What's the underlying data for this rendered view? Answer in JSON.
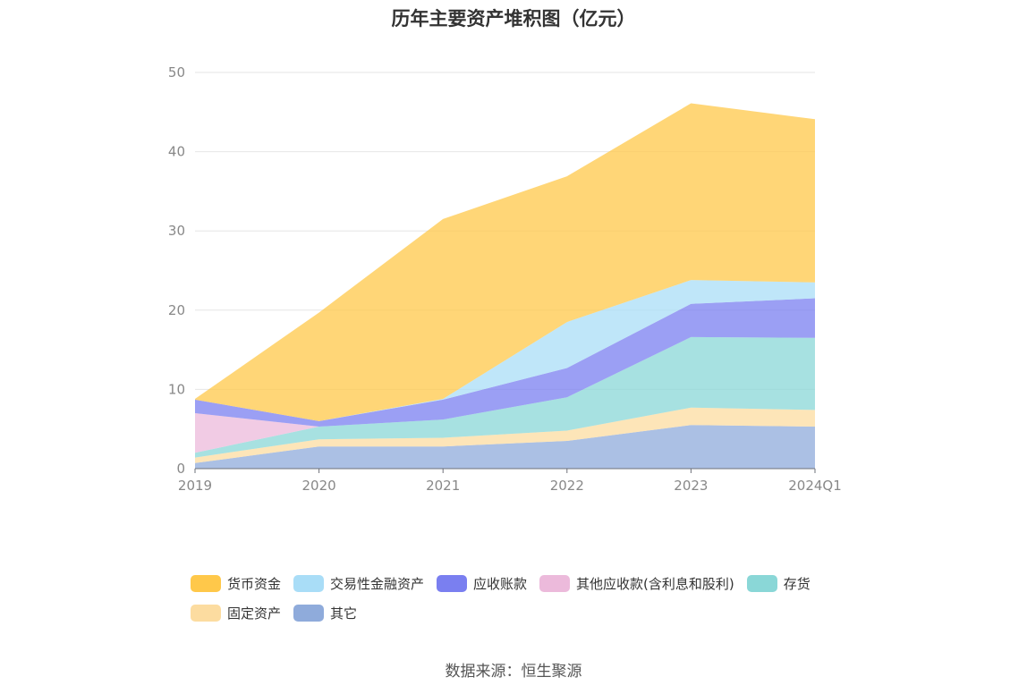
{
  "title": "历年主要资产堆积图（亿元）",
  "source": "数据来源：恒生聚源",
  "chart_data": {
    "type": "area",
    "stacked": true,
    "categories": [
      "2019",
      "2020",
      "2021",
      "2022",
      "2023",
      "2024Q1"
    ],
    "ylim": [
      0,
      50
    ],
    "yticks": [
      "0",
      "10",
      "20",
      "30",
      "40",
      "50"
    ],
    "grid": true,
    "legend_position": "bottom",
    "series": [
      {
        "name": "其它",
        "color": "#8fabdb",
        "values": [
          0.7,
          2.8,
          2.8,
          3.5,
          5.5,
          5.3
        ]
      },
      {
        "name": "固定资产",
        "color": "#fcdca0",
        "values": [
          0.7,
          0.9,
          1.1,
          1.3,
          2.2,
          2.1
        ]
      },
      {
        "name": "存货",
        "color": "#8ad7d7",
        "values": [
          0.6,
          1.6,
          2.3,
          4.2,
          8.9,
          9.1
        ]
      },
      {
        "name": "其他应收款(含利息和股利)",
        "color": "#ecbadb",
        "values": [
          5.0,
          0.0,
          0.0,
          0.0,
          0.0,
          0.0
        ]
      },
      {
        "name": "应收账款",
        "color": "#7a7ff0",
        "values": [
          1.7,
          0.7,
          2.5,
          3.7,
          4.2,
          5.0
        ]
      },
      {
        "name": "交易性金融资产",
        "color": "#a9ddf7",
        "values": [
          0.0,
          0.0,
          0.1,
          5.8,
          3.0,
          2.0
        ]
      },
      {
        "name": "货币资金",
        "color": "#ffc84a",
        "values": [
          0.1,
          13.7,
          22.7,
          18.4,
          22.3,
          20.6
        ]
      }
    ],
    "legend_order": [
      "货币资金",
      "交易性金融资产",
      "应收账款",
      "其他应收款(含利息和股利)",
      "存货",
      "固定资产",
      "其它"
    ]
  }
}
